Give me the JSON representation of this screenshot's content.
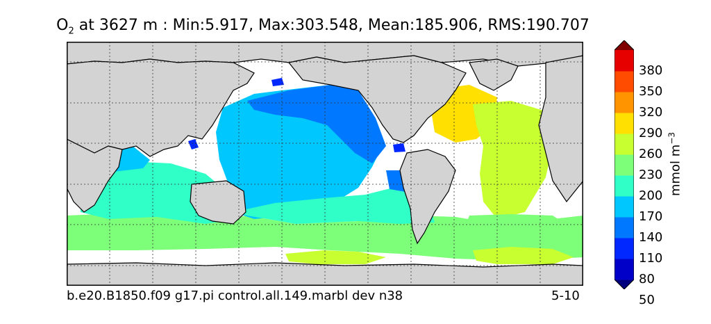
{
  "title": {
    "variable": "O",
    "subscript": "2",
    "text": " at 3627 m : Min:5.917, Max:303.548, Mean:185.906, RMS:190.707"
  },
  "footer": {
    "case": "b.e20.B1850.f09 g17.pi control.all.149.marbl dev n38",
    "years": "5-10"
  },
  "colorbar": {
    "units_label": "mmol m",
    "units_exponent": "−3",
    "ticks": [
      "380",
      "350",
      "320",
      "290",
      "260",
      "230",
      "200",
      "170",
      "140",
      "110",
      "80",
      "50"
    ],
    "colors_bottom_to_top": [
      "#00007f",
      "#0000c8",
      "#0028ff",
      "#0078ff",
      "#00c8ff",
      "#30ffc8",
      "#7dff7a",
      "#c8ff30",
      "#ffe000",
      "#ff9400",
      "#ff4c00",
      "#e70000",
      "#800000"
    ]
  },
  "map": {
    "projection": "global equirectangular",
    "land_color": "#d3d3d3",
    "missing_color": "#ffffff",
    "gridlines": "dashed"
  }
}
